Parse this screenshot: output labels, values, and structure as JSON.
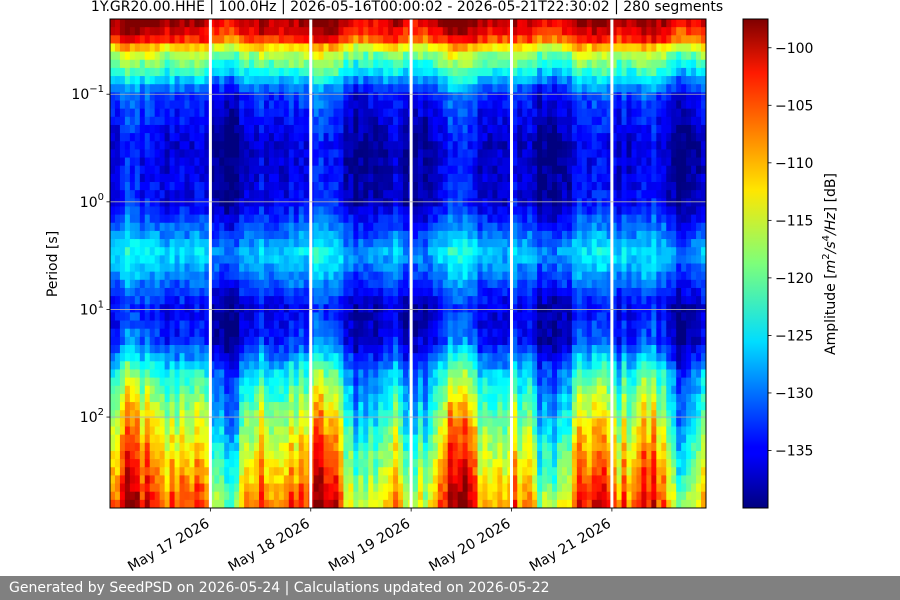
{
  "chart_data": {
    "type": "heatmap",
    "title": "1Y.GR20.00.HHE | 100.0Hz | 2026-05-16T00:00:02 - 2026-05-21T22:30:02 | 280 segments",
    "ylabel": "Period [s]",
    "yscale": "log",
    "ylim": [
      0.02,
      700
    ],
    "y_inverted": true,
    "y_ticks": [
      {
        "value": 0.1,
        "base": "10",
        "exp": "−1"
      },
      {
        "value": 1,
        "base": "10",
        "exp": "0"
      },
      {
        "value": 10,
        "base": "10",
        "exp": "1"
      },
      {
        "value": 100,
        "base": "10",
        "exp": "2"
      }
    ],
    "x_start": "2026-05-16T00:00:02",
    "x_end": "2026-05-21T22:30:02",
    "x_ticks": [
      "May 17 2026",
      "May 18 2026",
      "May 19 2026",
      "May 20 2026",
      "May 21 2026"
    ],
    "grid": true,
    "colorbar": {
      "label": "Amplitude [m²/s⁴/Hz] [dB]",
      "label_base": "Amplitude [",
      "label_m": "m",
      "label_m_exp": "2",
      "label_s": "/s",
      "label_s_exp": "4",
      "label_hz": "/Hz",
      "label_end": "] [dB]",
      "min": -140,
      "max": -97.5,
      "ticks": [
        -100,
        -105,
        -110,
        -115,
        -120,
        -125,
        -130,
        -135
      ],
      "colormap": "jet"
    },
    "band_profile": [
      {
        "period": 0.02,
        "db": -99
      },
      {
        "period": 0.03,
        "db": -104
      },
      {
        "period": 0.04,
        "db": -116
      },
      {
        "period": 0.06,
        "db": -123
      },
      {
        "period": 0.1,
        "db": -133
      },
      {
        "period": 0.3,
        "db": -137
      },
      {
        "period": 1,
        "db": -136
      },
      {
        "period": 2,
        "db": -130
      },
      {
        "period": 3,
        "db": -126
      },
      {
        "period": 5,
        "db": -130
      },
      {
        "period": 10,
        "db": -136
      },
      {
        "period": 20,
        "db": -134
      },
      {
        "period": 40,
        "db": -125
      },
      {
        "period": 100,
        "db": -119
      },
      {
        "period": 300,
        "db": -113
      },
      {
        "period": 700,
        "db": -108
      }
    ]
  },
  "footer": {
    "text": "Generated by SeedPSD on 2026-05-24 | Calculations updated on 2026-05-22"
  }
}
